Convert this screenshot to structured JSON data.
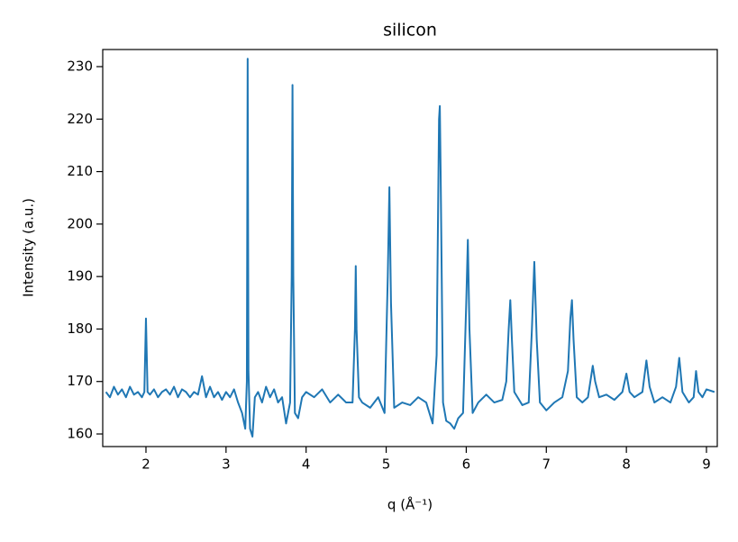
{
  "chart_data": {
    "type": "line",
    "title": "silicon",
    "x_label": "q (Å⁻¹)",
    "y_label": "Intensity (a.u.)",
    "x": [
      1.5,
      1.55,
      1.6,
      1.65,
      1.7,
      1.75,
      1.8,
      1.85,
      1.9,
      1.95,
      1.98,
      2.0,
      2.02,
      2.05,
      2.1,
      2.15,
      2.2,
      2.25,
      2.3,
      2.35,
      2.4,
      2.45,
      2.5,
      2.55,
      2.6,
      2.65,
      2.7,
      2.75,
      2.8,
      2.85,
      2.9,
      2.95,
      3.0,
      3.05,
      3.1,
      3.15,
      3.2,
      3.24,
      3.26,
      3.27,
      3.28,
      3.3,
      3.33,
      3.36,
      3.4,
      3.45,
      3.5,
      3.55,
      3.6,
      3.65,
      3.7,
      3.75,
      3.8,
      3.82,
      3.83,
      3.84,
      3.86,
      3.9,
      3.95,
      4.0,
      4.1,
      4.2,
      4.3,
      4.4,
      4.5,
      4.58,
      4.61,
      4.62,
      4.63,
      4.66,
      4.7,
      4.8,
      4.9,
      4.98,
      5.02,
      5.04,
      5.06,
      5.1,
      5.2,
      5.3,
      5.4,
      5.5,
      5.58,
      5.63,
      5.66,
      5.67,
      5.68,
      5.71,
      5.75,
      5.8,
      5.85,
      5.9,
      5.96,
      6.0,
      6.02,
      6.04,
      6.08,
      6.15,
      6.25,
      6.35,
      6.45,
      6.5,
      6.53,
      6.55,
      6.57,
      6.6,
      6.7,
      6.78,
      6.82,
      6.85,
      6.88,
      6.92,
      7.0,
      7.1,
      7.2,
      7.27,
      7.3,
      7.32,
      7.34,
      7.38,
      7.45,
      7.52,
      7.56,
      7.58,
      7.61,
      7.66,
      7.75,
      7.85,
      7.95,
      8.0,
      8.04,
      8.1,
      8.2,
      8.25,
      8.29,
      8.35,
      8.45,
      8.55,
      8.62,
      8.66,
      8.7,
      8.78,
      8.84,
      8.87,
      8.9,
      8.95,
      9.0,
      9.1
    ],
    "series": [
      {
        "color": "#1f77b4",
        "values": [
          168,
          167,
          169,
          167.5,
          168.5,
          167,
          169,
          167.5,
          168,
          167,
          168,
          182,
          168,
          167.5,
          168.5,
          167,
          168,
          168.5,
          167.5,
          169,
          167,
          168.5,
          168,
          167,
          168,
          167.5,
          171,
          167,
          169,
          167,
          168,
          166.5,
          168,
          167,
          168.5,
          166,
          164,
          161,
          170,
          231.5,
          172,
          161,
          159.5,
          167,
          168,
          166,
          169,
          167,
          168.5,
          166,
          167,
          162,
          166,
          190,
          226.5,
          190,
          164,
          163,
          167,
          168,
          167,
          168.5,
          166,
          167.5,
          166,
          166,
          180,
          192,
          180,
          167,
          166,
          165,
          167,
          164,
          190,
          207,
          185,
          165,
          166,
          165.5,
          167,
          166,
          162,
          175,
          220,
          222.5,
          210,
          166,
          162.5,
          162,
          161,
          163,
          164,
          185,
          197,
          180,
          164,
          166,
          167.5,
          166,
          166.5,
          170,
          180,
          185.5,
          178,
          168,
          165.5,
          166,
          180,
          192.8,
          178,
          166,
          164.5,
          166,
          167,
          172,
          182,
          185.5,
          178,
          167,
          166,
          167,
          171,
          173,
          170,
          167,
          167.5,
          166.5,
          168,
          171.5,
          168,
          167,
          168,
          174,
          169,
          166,
          167,
          166,
          169,
          174.5,
          168,
          166,
          167,
          172,
          168,
          167,
          168.5,
          168
        ]
      }
    ],
    "xlim": [
      1.46,
      9.135
    ],
    "ylim": [
      157.6,
      233.26
    ],
    "xticks": [
      2,
      3,
      4,
      5,
      6,
      7,
      8,
      9
    ],
    "yticks": [
      160,
      170,
      180,
      190,
      200,
      210,
      220,
      230
    ],
    "grid": false
  }
}
